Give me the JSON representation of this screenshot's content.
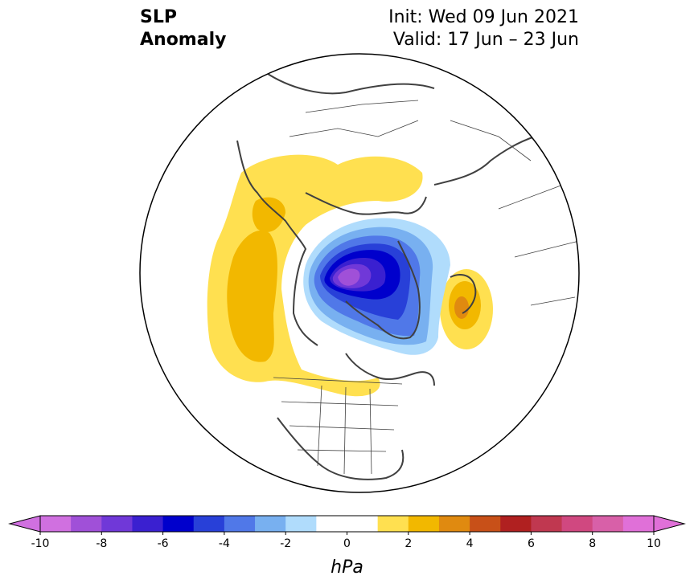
{
  "title": {
    "left_line1": "SLP",
    "left_line2": "Anomaly",
    "right_line1": "Init: Wed 09 Jun 2021",
    "right_line2": "Valid: 17 Jun – 23 Jun"
  },
  "colorbar": {
    "unit": "hPa",
    "tick_labels": [
      "-10",
      "-8",
      "-6",
      "-4",
      "-2",
      "0",
      "2",
      "4",
      "6",
      "8",
      "10"
    ],
    "colors": [
      "#d070e0",
      "#a050d8",
      "#7038d8",
      "#3a20d0",
      "#0000cc",
      "#2840d8",
      "#5078e8",
      "#78b0f0",
      "#b0dcfc",
      "#ffffff",
      "#ffffff",
      "#ffe050",
      "#f2b800",
      "#e08a10",
      "#c85018",
      "#b02020",
      "#c03850",
      "#d04880",
      "#d860a8",
      "#e070d8"
    ]
  },
  "map": {
    "projection": "north-polar-stereographic",
    "features": [
      "coastlines",
      "country-borders",
      "us-state-borders"
    ],
    "anomaly_regions": [
      {
        "name": "arctic-low",
        "sign": "negative",
        "max_abs_hPa": 9
      },
      {
        "name": "north-pacific-high",
        "sign": "positive",
        "max_abs_hPa": 3
      },
      {
        "name": "north-atlantic-high",
        "sign": "positive",
        "max_abs_hPa": 4
      }
    ]
  }
}
